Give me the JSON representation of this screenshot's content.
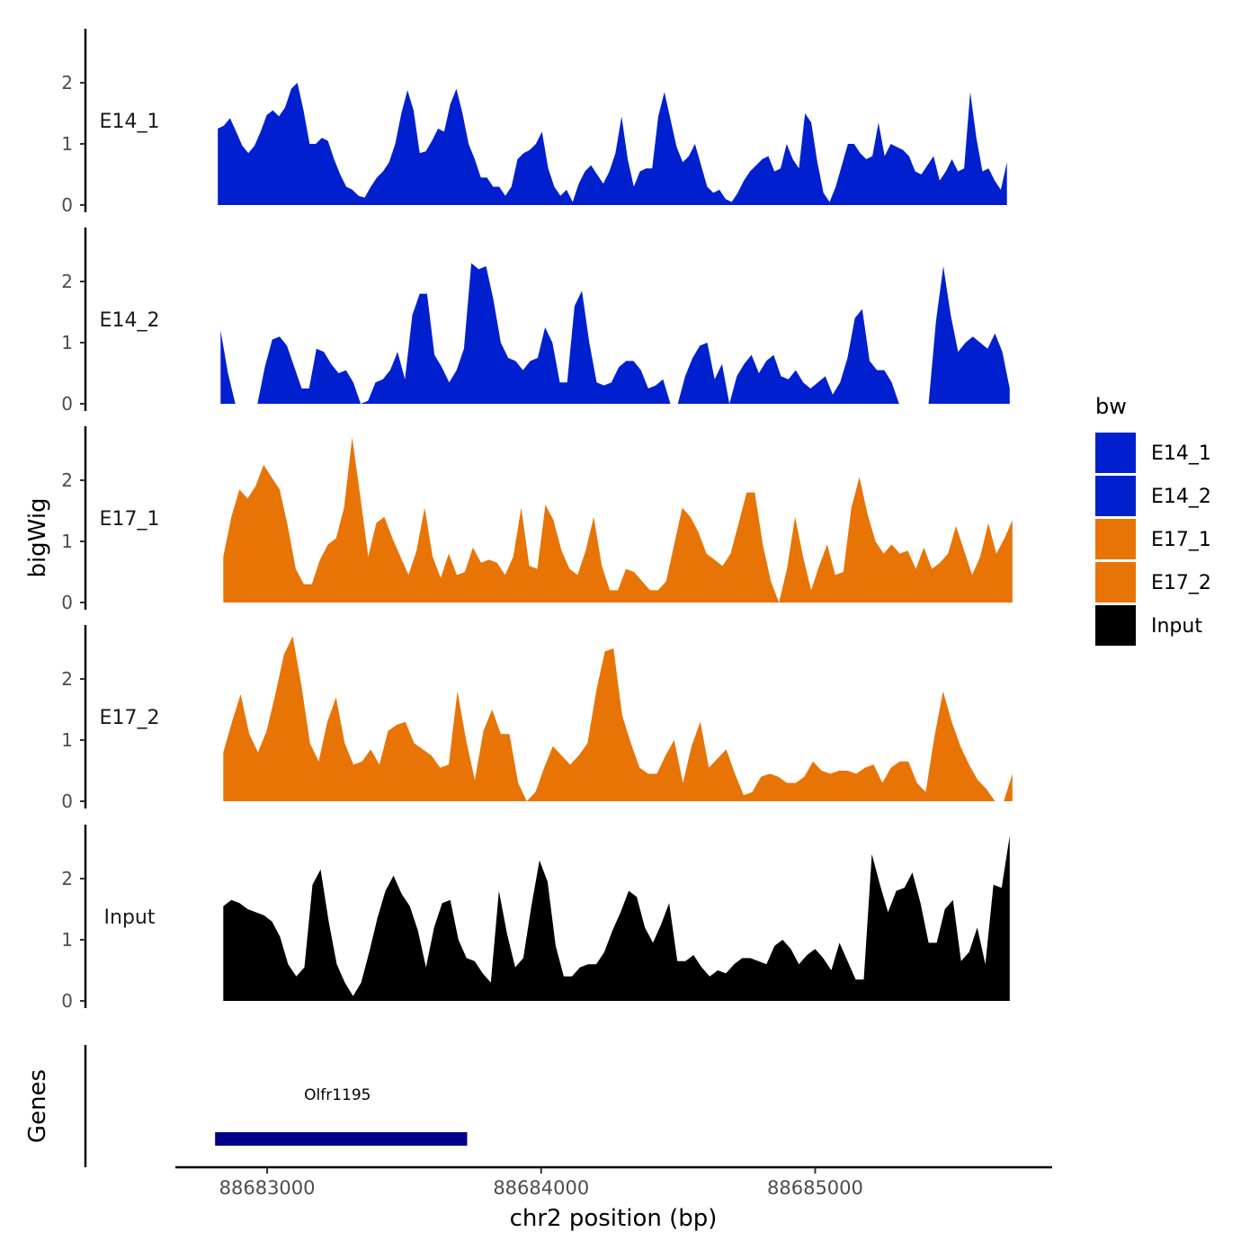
{
  "chart_data": {
    "type": "area",
    "ylabel": "bigWig",
    "genes_label": "Genes",
    "xlabel": "chr2 position (bp)",
    "x_range": [
      88682665,
      88685865
    ],
    "x_ticks": [
      {
        "value": 88683000,
        "label": "88683000"
      },
      {
        "value": 88684000,
        "label": "88684000"
      },
      {
        "value": 88685000,
        "label": "88685000"
      }
    ],
    "y_range": [
      0,
      2.9
    ],
    "y_ticks": [
      {
        "value": 0,
        "label": "0"
      },
      {
        "value": 1,
        "label": "1"
      },
      {
        "value": 2,
        "label": "2"
      }
    ],
    "legend": {
      "title": "bw",
      "position": "right",
      "entries": [
        {
          "label": "E14_1",
          "color": "#0020D0"
        },
        {
          "label": "E14_2",
          "color": "#0020D0"
        },
        {
          "label": "E17_1",
          "color": "#E87406"
        },
        {
          "label": "E17_2",
          "color": "#E87406"
        },
        {
          "label": "Input",
          "color": "#000000"
        }
      ]
    },
    "series": [
      {
        "name": "E14_1",
        "color": "#0020D0",
        "x_start": 88682820,
        "x_end": 88685700,
        "values": [
          1.25,
          1.3,
          1.42,
          1.2,
          0.97,
          0.85,
          0.97,
          1.2,
          1.47,
          1.55,
          1.45,
          1.6,
          1.9,
          2.0,
          1.55,
          1.0,
          1.0,
          1.1,
          1.05,
          0.75,
          0.5,
          0.3,
          0.25,
          0.15,
          0.12,
          0.3,
          0.45,
          0.55,
          0.7,
          1.0,
          1.5,
          1.88,
          1.55,
          0.85,
          0.88,
          1.05,
          1.25,
          1.2,
          1.65,
          1.9,
          1.5,
          1.0,
          0.75,
          0.45,
          0.45,
          0.3,
          0.3,
          0.15,
          0.3,
          0.75,
          0.85,
          0.9,
          1.0,
          1.2,
          0.6,
          0.3,
          0.15,
          0.25,
          0.05,
          0.35,
          0.55,
          0.65,
          0.5,
          0.35,
          0.55,
          0.85,
          1.45,
          0.75,
          0.3,
          0.55,
          0.6,
          0.6,
          1.45,
          1.85,
          1.4,
          0.95,
          0.7,
          0.8,
          1.0,
          0.65,
          0.3,
          0.2,
          0.25,
          0.1,
          0.05,
          0.2,
          0.4,
          0.55,
          0.65,
          0.75,
          0.8,
          0.55,
          0.6,
          1.0,
          0.75,
          0.6,
          1.5,
          1.35,
          0.7,
          0.2,
          0.05,
          0.3,
          0.65,
          1.0,
          1.0,
          0.85,
          0.75,
          0.8,
          1.35,
          0.8,
          1.0,
          0.95,
          0.9,
          0.8,
          0.55,
          0.5,
          0.65,
          0.8,
          0.4,
          0.55,
          0.75,
          0.55,
          0.6,
          1.85,
          1.1,
          0.55,
          0.6,
          0.4,
          0.25,
          0.7
        ]
      },
      {
        "name": "E14_2",
        "color": "#0020D0",
        "x_start": 88682830,
        "x_end": 88685710,
        "values": [
          1.2,
          0.5,
          0.0,
          0.0,
          0.0,
          0.0,
          0.6,
          1.05,
          1.1,
          0.95,
          0.6,
          0.25,
          0.25,
          0.9,
          0.85,
          0.65,
          0.5,
          0.55,
          0.35,
          0.0,
          0.05,
          0.35,
          0.4,
          0.55,
          0.85,
          0.4,
          1.45,
          1.8,
          1.8,
          0.8,
          0.6,
          0.35,
          0.55,
          0.9,
          2.3,
          2.2,
          2.25,
          1.7,
          1.0,
          0.75,
          0.7,
          0.55,
          0.7,
          0.75,
          1.25,
          1.0,
          0.35,
          0.35,
          1.6,
          1.85,
          1.0,
          0.35,
          0.3,
          0.35,
          0.6,
          0.7,
          0.7,
          0.55,
          0.25,
          0.3,
          0.4,
          0.0,
          0.0,
          0.45,
          0.75,
          0.95,
          1.0,
          0.4,
          0.65,
          0.0,
          0.45,
          0.65,
          0.8,
          0.5,
          0.7,
          0.8,
          0.45,
          0.4,
          0.55,
          0.35,
          0.25,
          0.35,
          0.45,
          0.15,
          0.35,
          0.75,
          1.4,
          1.55,
          0.7,
          0.55,
          0.55,
          0.35,
          0.0,
          0.0,
          0.0,
          0.0,
          0.0,
          1.35,
          2.25,
          1.45,
          0.85,
          1.0,
          1.1,
          1.0,
          0.9,
          1.15,
          0.85,
          0.25
        ]
      },
      {
        "name": "E17_1",
        "color": "#E87406",
        "x_start": 88682840,
        "x_end": 88685720,
        "values": [
          0.75,
          1.4,
          1.85,
          1.7,
          1.9,
          2.25,
          2.05,
          1.85,
          1.25,
          0.55,
          0.3,
          0.3,
          0.7,
          0.95,
          1.05,
          1.55,
          2.7,
          1.75,
          0.75,
          1.3,
          1.4,
          1.05,
          0.75,
          0.45,
          0.85,
          1.55,
          0.75,
          0.4,
          0.8,
          0.45,
          0.5,
          0.9,
          0.65,
          0.7,
          0.65,
          0.45,
          0.75,
          1.55,
          0.6,
          0.55,
          1.6,
          1.35,
          0.85,
          0.55,
          0.45,
          0.85,
          1.4,
          0.6,
          0.2,
          0.2,
          0.55,
          0.5,
          0.35,
          0.2,
          0.2,
          0.35,
          0.95,
          1.55,
          1.4,
          1.15,
          0.8,
          0.7,
          0.6,
          0.8,
          1.3,
          1.8,
          1.8,
          0.95,
          0.35,
          0.0,
          0.55,
          1.4,
          0.75,
          0.2,
          0.6,
          0.95,
          0.45,
          0.5,
          1.55,
          2.05,
          1.45,
          1.0,
          0.8,
          0.95,
          0.8,
          0.85,
          0.55,
          0.9,
          0.55,
          0.65,
          0.8,
          1.25,
          0.85,
          0.45,
          0.75,
          1.3,
          0.8,
          1.05,
          1.35
        ]
      },
      {
        "name": "E17_2",
        "color": "#E87406",
        "x_start": 88682840,
        "x_end": 88685720,
        "values": [
          0.8,
          1.3,
          1.75,
          1.1,
          0.8,
          1.15,
          1.75,
          2.4,
          2.7,
          1.9,
          0.95,
          0.65,
          1.3,
          1.7,
          0.95,
          0.6,
          0.65,
          0.85,
          0.6,
          1.15,
          1.25,
          1.3,
          0.95,
          0.85,
          0.75,
          0.55,
          0.6,
          1.8,
          1.0,
          0.35,
          1.15,
          1.5,
          1.1,
          1.1,
          0.3,
          0.0,
          0.15,
          0.55,
          0.9,
          0.75,
          0.6,
          0.75,
          0.95,
          1.8,
          2.45,
          2.5,
          1.4,
          0.95,
          0.55,
          0.45,
          0.45,
          0.75,
          1.0,
          0.3,
          0.9,
          1.3,
          0.55,
          0.7,
          0.85,
          0.45,
          0.1,
          0.15,
          0.4,
          0.45,
          0.4,
          0.3,
          0.3,
          0.4,
          0.65,
          0.5,
          0.45,
          0.5,
          0.5,
          0.45,
          0.55,
          0.6,
          0.3,
          0.55,
          0.65,
          0.65,
          0.3,
          0.15,
          1.05,
          1.8,
          1.3,
          0.9,
          0.6,
          0.35,
          0.2,
          0.0,
          0.0,
          0.45
        ]
      },
      {
        "name": "Input",
        "color": "#000000",
        "x_start": 88682840,
        "x_end": 88685710,
        "values": [
          1.55,
          1.65,
          1.6,
          1.5,
          1.45,
          1.4,
          1.3,
          1.05,
          0.6,
          0.4,
          0.55,
          1.9,
          2.15,
          1.3,
          0.6,
          0.3,
          0.08,
          0.3,
          0.8,
          1.35,
          1.8,
          2.05,
          1.75,
          1.55,
          1.15,
          0.55,
          1.2,
          1.6,
          1.65,
          1.0,
          0.7,
          0.65,
          0.45,
          0.3,
          1.8,
          1.1,
          0.55,
          0.7,
          1.55,
          2.3,
          1.95,
          0.9,
          0.4,
          0.4,
          0.55,
          0.6,
          0.6,
          0.8,
          1.15,
          1.45,
          1.8,
          1.7,
          1.2,
          0.95,
          1.25,
          1.6,
          0.65,
          0.65,
          0.75,
          0.55,
          0.4,
          0.5,
          0.45,
          0.6,
          0.7,
          0.7,
          0.65,
          0.6,
          0.9,
          1.0,
          0.85,
          0.6,
          0.75,
          0.85,
          0.7,
          0.5,
          0.95,
          0.65,
          0.35,
          0.35,
          2.4,
          1.9,
          1.45,
          1.8,
          1.85,
          2.1,
          1.6,
          0.95,
          0.95,
          1.5,
          1.65,
          0.65,
          0.8,
          1.2,
          0.6,
          1.9,
          1.85,
          2.7
        ]
      }
    ],
    "genes": [
      {
        "name": "Olfr1195",
        "start": 88682810,
        "end": 88683730,
        "color": "#00008B"
      }
    ]
  }
}
